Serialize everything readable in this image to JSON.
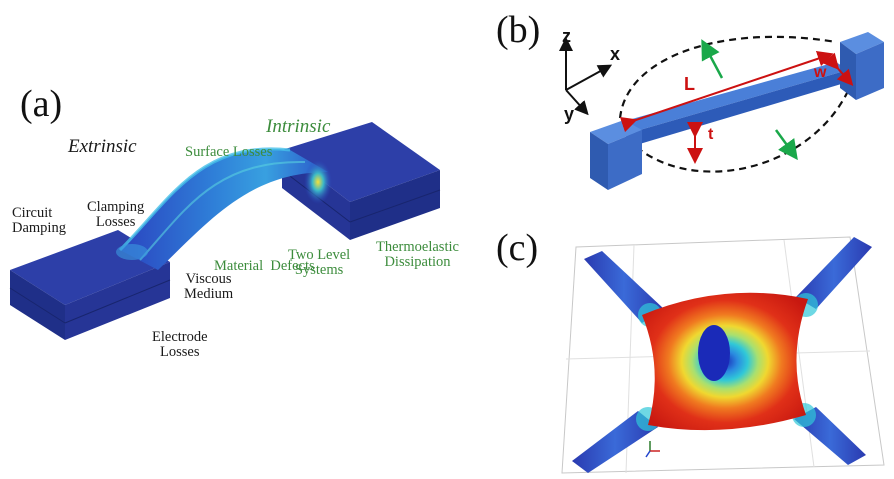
{
  "panel_a": {
    "letter": "(a)",
    "extrinsic_title": "Extrinsic",
    "intrinsic_title": "Intrinsic",
    "extrinsic_labels": [
      [
        "Circuit",
        "Damping"
      ],
      [
        "Clamping",
        "Losses"
      ],
      [
        "Viscous",
        "Medium"
      ],
      [
        "Electrode",
        "Losses"
      ]
    ],
    "intrinsic_labels": [
      [
        "Surface Losses"
      ],
      [
        "Material  Defects"
      ],
      [
        "Two Level",
        "Systems"
      ],
      [
        "Thermoelastic",
        "Dissipation"
      ]
    ]
  },
  "panel_b": {
    "letter": "(b)",
    "axes": {
      "x": "x",
      "y": "y",
      "z": "z"
    },
    "dims": {
      "length": "L",
      "width": "w",
      "thickness": "t"
    }
  },
  "panel_c": {
    "letter": "(c)"
  },
  "colors": {
    "substrate": "#2a3a9e",
    "beam": "#3056c8",
    "label_green": "#3c8c3c",
    "dim_red": "#cc1111",
    "mode_arrow": "#1aa84a"
  }
}
